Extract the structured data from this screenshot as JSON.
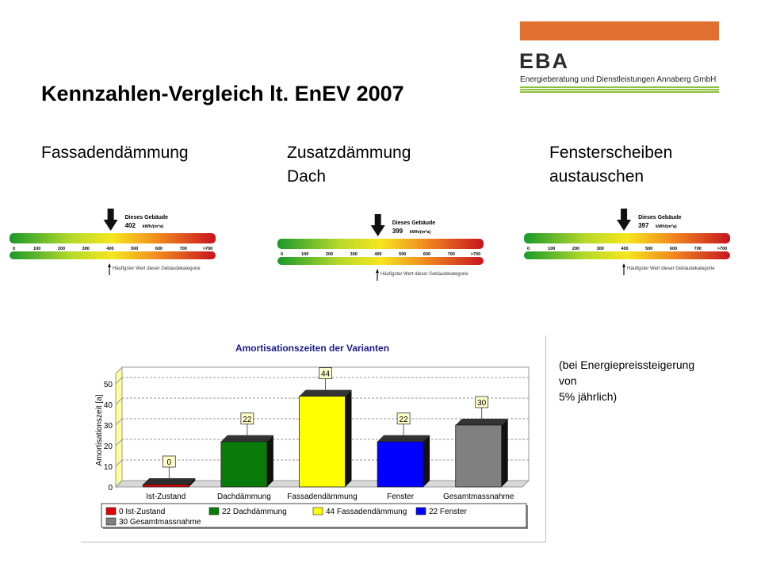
{
  "logo": {
    "text": "EBA",
    "subtitle": "Energieberatung und Dienstleistungen Annaberg GmbH",
    "bar_color": "#e07030",
    "line_color": "#8bbf3c"
  },
  "title": "Kennzahlen-Vergleich lt. EnEV 2007",
  "columns": [
    {
      "label": "Fassadendämmung",
      "value": "402"
    },
    {
      "label": "Zusatzdämmung\nDach",
      "value": "399"
    },
    {
      "label": "Fensterscheiben\naustauschen",
      "value": "397"
    }
  ],
  "scale": {
    "marker_label": "Dieses Gebäude",
    "unit": "kWh/(m²a)",
    "ticks": [
      "0",
      "100",
      "200",
      "300",
      "400",
      "500",
      "600",
      "700",
      ">700"
    ],
    "footnote": "Häufigster Wert dieser Gebäudekategorie"
  },
  "note": "(bei Energiepreissteigerung\nvon\n5% jährlich)",
  "chart_data": {
    "type": "bar",
    "title": "Amortisationszeiten der Varianten",
    "ylabel": "Amortisationszeit [a]",
    "xlabel": "",
    "ylim": [
      0,
      55
    ],
    "yticks": [
      0,
      10,
      20,
      30,
      40,
      50
    ],
    "grid": true,
    "categories": [
      "Ist-Zustand",
      "Dachdämmung",
      "Fassadendämmung",
      "Fenster",
      "Gesamtmassnahme"
    ],
    "values": [
      0,
      22,
      44,
      22,
      30
    ],
    "colors": [
      "#e00000",
      "#0a7a0a",
      "#ffff00",
      "#0000ff",
      "#808080"
    ],
    "legend": [
      "0 Ist-Zustand",
      "22 Dachdämmung",
      "44 Fassadendämmung",
      "22 Fenster",
      "30 Gesamtmassnahme"
    ],
    "legend_position": "bottom"
  }
}
